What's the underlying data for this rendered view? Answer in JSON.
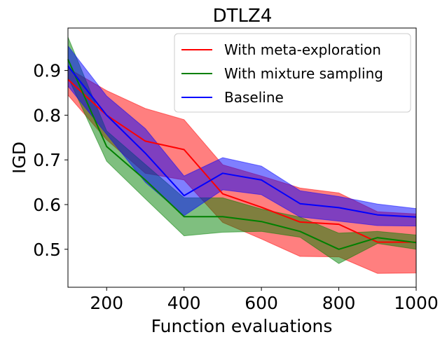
{
  "chart_data": {
    "type": "line",
    "title": "DTLZ4",
    "xlabel": "Function evaluations",
    "ylabel": "IGD",
    "xlim": [
      100,
      1000
    ],
    "ylim": [
      0.415,
      0.995
    ],
    "xticks": [
      200,
      400,
      600,
      800,
      1000
    ],
    "yticks": [
      0.5,
      0.6,
      0.7,
      0.8,
      0.9
    ],
    "xtick_labels": [
      "200",
      "400",
      "600",
      "800",
      "1000"
    ],
    "ytick_labels": [
      "0.5",
      "0.6",
      "0.7",
      "0.8",
      "0.9"
    ],
    "legend_position": "top-right",
    "x": [
      100,
      200,
      300,
      400,
      500,
      600,
      700,
      800,
      900,
      1000
    ],
    "series": [
      {
        "name": "With meta-exploration",
        "color": "#ff0000",
        "fill_color": "#ff0000",
        "fill_opacity": 0.5,
        "mean": [
          0.88,
          0.8,
          0.742,
          0.723,
          0.624,
          0.594,
          0.561,
          0.556,
          0.516,
          0.516
        ],
        "upper": [
          0.905,
          0.855,
          0.815,
          0.79,
          0.689,
          0.664,
          0.637,
          0.626,
          0.584,
          0.579
        ],
        "lower": [
          0.845,
          0.745,
          0.67,
          0.655,
          0.56,
          0.523,
          0.484,
          0.483,
          0.446,
          0.447
        ]
      },
      {
        "name": "With mixture sampling",
        "color": "#008000",
        "fill_color": "#008000",
        "fill_opacity": 0.5,
        "mean": [
          0.925,
          0.73,
          0.655,
          0.573,
          0.573,
          0.562,
          0.54,
          0.5,
          0.526,
          0.515
        ],
        "upper": [
          0.975,
          0.765,
          0.69,
          0.615,
          0.615,
          0.59,
          0.572,
          0.536,
          0.54,
          0.532
        ],
        "lower": [
          0.885,
          0.697,
          0.613,
          0.53,
          0.538,
          0.54,
          0.527,
          0.468,
          0.513,
          0.5
        ]
      },
      {
        "name": "Baseline",
        "color": "#0000ff",
        "fill_color": "#0000ff",
        "fill_opacity": 0.5,
        "mean": [
          0.91,
          0.8,
          0.715,
          0.62,
          0.67,
          0.655,
          0.602,
          0.593,
          0.577,
          0.572
        ],
        "upper": [
          0.955,
          0.843,
          0.77,
          0.664,
          0.705,
          0.686,
          0.631,
          0.618,
          0.601,
          0.591
        ],
        "lower": [
          0.865,
          0.757,
          0.65,
          0.575,
          0.633,
          0.622,
          0.572,
          0.563,
          0.553,
          0.552
        ]
      }
    ]
  }
}
